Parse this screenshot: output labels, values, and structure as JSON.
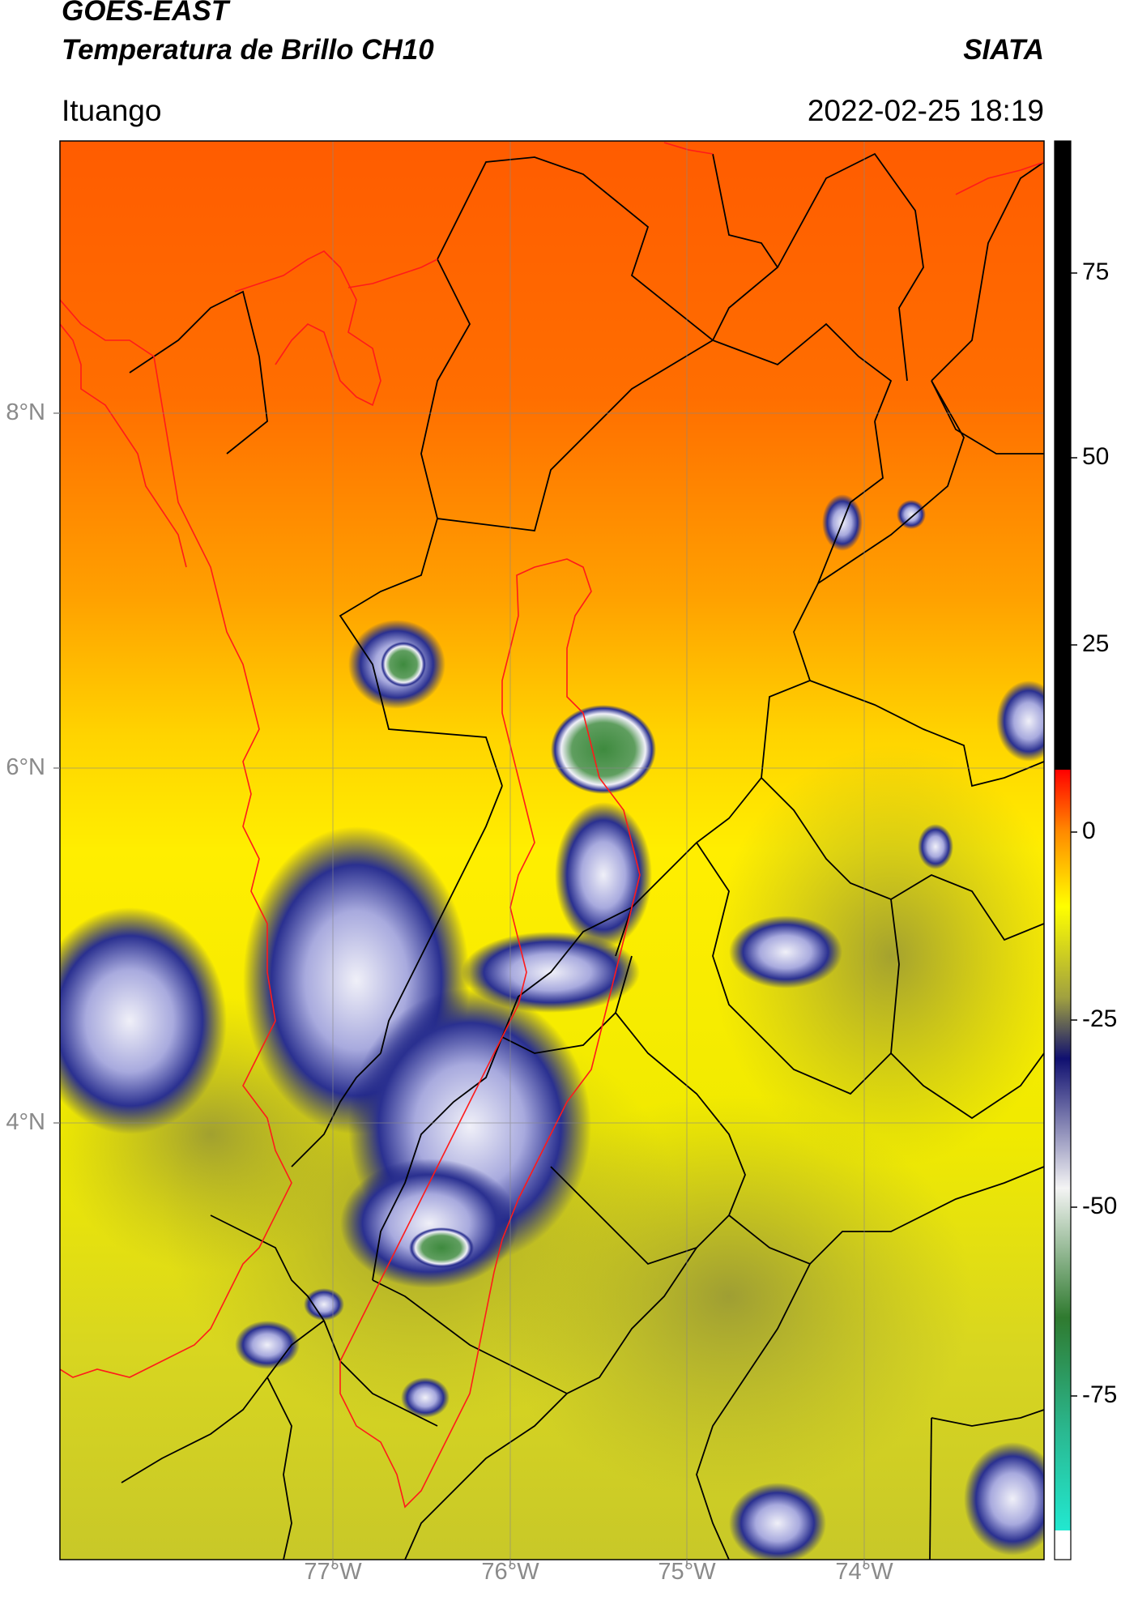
{
  "header": {
    "satellite": "GOES-EAST",
    "product": "Temperatura de Brillo CH10",
    "organization": "SIATA",
    "region": "Ituango",
    "datetime": "2022-02-25 18:19"
  },
  "map": {
    "lat_labels": [
      "8°N",
      "6°N",
      "4°N"
    ],
    "lon_labels": [
      "77°W",
      "76°W",
      "75°W",
      "74°W"
    ],
    "graticule": true,
    "colors": {
      "warm_orange": "#ff6a00",
      "yellow": "#ffee00",
      "olive": "#bdbd2a",
      "navy": "#141a7a",
      "lavender": "#b4b6e0",
      "green": "#3e8a3e",
      "boundary_black": "#000000",
      "boundary_red": "#ff1a1a"
    }
  },
  "colorbar": {
    "ticks": [
      "75",
      "50",
      "25",
      "0",
      "-25",
      "-50",
      "-75"
    ],
    "colors": {
      "black": "#000000",
      "red": "#ff0000",
      "orange": "#ff8800",
      "yellow": "#ffff00",
      "olive": "#a0a040",
      "navy": "#101070",
      "white": "#f4f4f4",
      "green": "#2f7a2f",
      "cyan": "#22e8d0"
    }
  }
}
